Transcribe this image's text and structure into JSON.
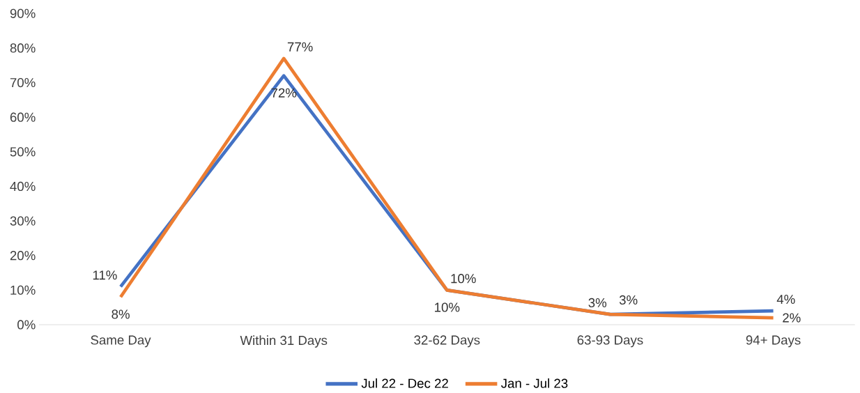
{
  "chart_data": {
    "type": "line",
    "categories": [
      "Same Day",
      "Within 31 Days",
      "32-62 Days",
      "63-93 Days",
      "94+ Days"
    ],
    "series": [
      {
        "name": "Jul 22 - Dec 22",
        "color": "#4472c4",
        "values": [
          11,
          72,
          10,
          3,
          4
        ],
        "value_labels": [
          "11%",
          "72%",
          "10%",
          "3%",
          "4%"
        ]
      },
      {
        "name": "Jan - Jul 23",
        "color": "#ed7d31",
        "values": [
          8,
          77,
          10,
          3,
          2
        ],
        "value_labels": [
          "8%",
          "77%",
          "10%",
          "3%",
          "2%"
        ]
      }
    ],
    "ylim": [
      0,
      90
    ],
    "yticks": [
      {
        "value": 0,
        "label": "0%"
      },
      {
        "value": 10,
        "label": "10%"
      },
      {
        "value": 20,
        "label": "20%"
      },
      {
        "value": 30,
        "label": "30%"
      },
      {
        "value": 40,
        "label": "40%"
      },
      {
        "value": 50,
        "label": "50%"
      },
      {
        "value": 60,
        "label": "60%"
      },
      {
        "value": 70,
        "label": "70%"
      },
      {
        "value": 80,
        "label": "80%"
      },
      {
        "value": 90,
        "label": "90%"
      }
    ],
    "grid": false,
    "legend": "bottom",
    "marker": "none",
    "line_style": "solid"
  }
}
